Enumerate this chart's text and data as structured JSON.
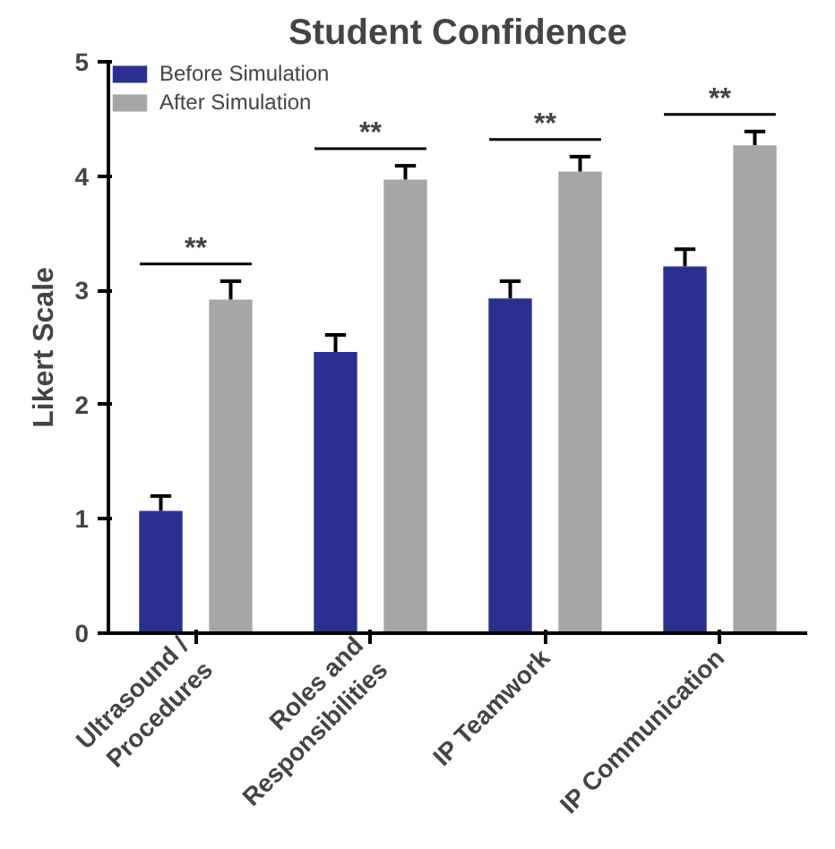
{
  "chart_data": {
    "type": "bar",
    "title": "Student Confidence",
    "ylabel": "Likert Scale",
    "categories": [
      "Ultrasound /\nProcedures",
      "Roles and\nResponsibilities",
      "IP Teamwork",
      "IP Communication"
    ],
    "series": [
      {
        "name": "Before Simulation",
        "color": "#2b2f8f",
        "values": [
          1.07,
          2.46,
          2.93,
          3.21
        ],
        "errors": [
          [
            1.07,
            1.2
          ],
          [
            2.46,
            2.61
          ],
          [
            2.93,
            3.08
          ],
          [
            3.21,
            3.36
          ]
        ]
      },
      {
        "name": "After Simulation",
        "color": "#a6a6a6",
        "values": [
          2.92,
          3.97,
          4.04,
          4.27
        ],
        "errors": [
          [
            2.92,
            3.08
          ],
          [
            3.97,
            4.09
          ],
          [
            4.04,
            4.17
          ],
          [
            4.27,
            4.39
          ]
        ]
      }
    ],
    "ylim": [
      0,
      5
    ],
    "yticks": [
      0,
      1,
      2,
      3,
      4,
      5
    ],
    "grid": false,
    "legend": "top left",
    "annotations": [
      "**",
      "**",
      "**",
      "**"
    ]
  }
}
